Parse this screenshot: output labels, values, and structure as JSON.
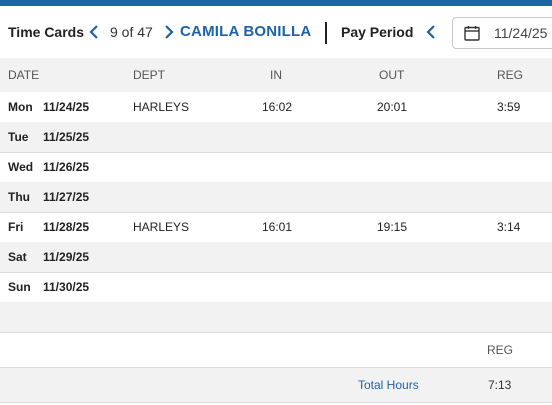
{
  "header": {
    "title": "Time Cards",
    "prev_icon": "chevron-left-icon",
    "counter": "9 of 47",
    "next_icon": "chevron-right-icon",
    "employee_name": "CAMILA BONILLA",
    "pay_period_label": "Pay Period",
    "period_prev_icon": "chevron-left-icon",
    "calendar_icon": "calendar-icon",
    "pay_period_date": "11/24/25",
    "accent_color": "#1d63a8"
  },
  "columns": [
    "DATE",
    "DEPT",
    "IN",
    "OUT",
    "REG"
  ],
  "rows": [
    {
      "day": "Mon",
      "date": "11/24/25",
      "dept": "HARLEYS",
      "in": "16:02",
      "out": "20:01",
      "reg": "3:59"
    },
    {
      "day": "Tue",
      "date": "11/25/25",
      "dept": "",
      "in": "",
      "out": "",
      "reg": ""
    },
    {
      "day": "Wed",
      "date": "11/26/25",
      "dept": "",
      "in": "",
      "out": "",
      "reg": ""
    },
    {
      "day": "Thu",
      "date": "11/27/25",
      "dept": "",
      "in": "",
      "out": "",
      "reg": ""
    },
    {
      "day": "Fri",
      "date": "11/28/25",
      "dept": "HARLEYS",
      "in": "16:01",
      "out": "19:15",
      "reg": "3:14"
    },
    {
      "day": "Sat",
      "date": "11/29/25",
      "dept": "",
      "in": "",
      "out": "",
      "reg": ""
    },
    {
      "day": "Sun",
      "date": "11/30/25",
      "dept": "",
      "in": "",
      "out": "",
      "reg": ""
    }
  ],
  "totals": {
    "column_label": "REG",
    "label": "Total Hours",
    "reg": "7:13"
  }
}
